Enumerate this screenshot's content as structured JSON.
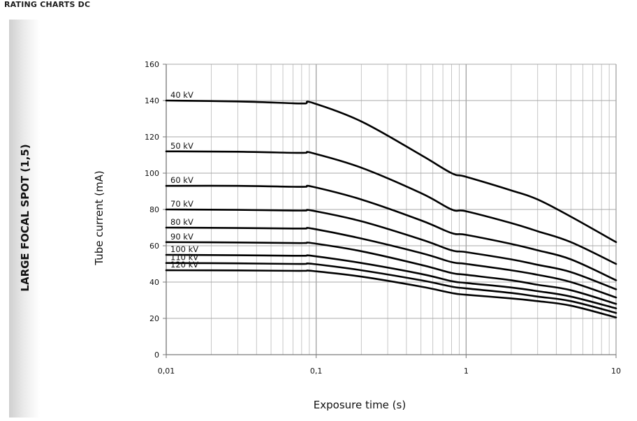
{
  "header": {
    "title": "RATING CHARTS DC"
  },
  "side_label": "LARGE FOCAL SPOT (1,5)",
  "chart_data": {
    "type": "line",
    "xlabel": "Exposure time (s)",
    "ylabel": "Tube current (mA)",
    "x_scale": "log",
    "xlim": [
      0.01,
      10
    ],
    "ylim": [
      0,
      160
    ],
    "x_ticks": [
      0.01,
      0.1,
      1,
      10
    ],
    "x_tick_labels": [
      "0,01",
      "0,1",
      "1",
      "10"
    ],
    "y_ticks": [
      0,
      20,
      40,
      60,
      80,
      100,
      120,
      140,
      160
    ],
    "grid": true,
    "series": [
      {
        "name": "40 kV",
        "x": [
          0.01,
          0.03,
          0.07,
          0.085,
          0.095,
          0.2,
          0.5,
          0.8,
          1,
          2,
          3,
          5,
          10
        ],
        "y": [
          140,
          139.5,
          138.5,
          138.4,
          138.7,
          128.5,
          110,
          100,
          98,
          90.5,
          85.5,
          76,
          62
        ]
      },
      {
        "name": "50 kV",
        "x": [
          0.01,
          0.03,
          0.07,
          0.085,
          0.095,
          0.2,
          0.5,
          0.8,
          1,
          2,
          3,
          5,
          10
        ],
        "y": [
          112,
          111.8,
          111.2,
          111.2,
          111,
          103,
          89,
          80,
          79,
          72.5,
          68,
          62,
          50
        ]
      },
      {
        "name": "60 kV",
        "x": [
          0.01,
          0.03,
          0.07,
          0.085,
          0.095,
          0.2,
          0.5,
          0.8,
          1,
          2,
          3,
          5,
          10
        ],
        "y": [
          93,
          93,
          92.5,
          92.5,
          92.5,
          85.5,
          74,
          67,
          66,
          61,
          57.5,
          52.5,
          41
        ]
      },
      {
        "name": "70 kV",
        "x": [
          0.01,
          0.03,
          0.07,
          0.085,
          0.095,
          0.2,
          0.5,
          0.8,
          1,
          2,
          3,
          5,
          10
        ],
        "y": [
          80,
          79.8,
          79.4,
          79.4,
          79.3,
          73.5,
          63.5,
          57.5,
          56.5,
          52.5,
          49.5,
          45.5,
          36
        ]
      },
      {
        "name": "80 kV",
        "x": [
          0.01,
          0.03,
          0.07,
          0.085,
          0.095,
          0.2,
          0.5,
          0.8,
          1,
          2,
          3,
          5,
          10
        ],
        "y": [
          70,
          69.8,
          69.5,
          69.5,
          69.4,
          64,
          56,
          51,
          50,
          46.5,
          44,
          40,
          31.5
        ]
      },
      {
        "name": "90 kV",
        "x": [
          0.01,
          0.03,
          0.07,
          0.085,
          0.095,
          0.2,
          0.5,
          0.8,
          1,
          2,
          3,
          5,
          10
        ],
        "y": [
          62,
          61.8,
          61.5,
          61.5,
          61.4,
          57,
          49.5,
          45,
          44,
          41,
          38.5,
          35.5,
          28
        ]
      },
      {
        "name": "100 kV",
        "x": [
          0.01,
          0.03,
          0.07,
          0.085,
          0.095,
          0.2,
          0.5,
          0.8,
          1,
          2,
          3,
          5,
          10
        ],
        "y": [
          55,
          54.8,
          54.5,
          54.5,
          54.4,
          50.5,
          44.5,
          40.5,
          39.5,
          37,
          35,
          32,
          25.5
        ]
      },
      {
        "name": "110 kV",
        "x": [
          0.01,
          0.03,
          0.07,
          0.085,
          0.095,
          0.2,
          0.5,
          0.8,
          1,
          2,
          3,
          5,
          10
        ],
        "y": [
          50.5,
          50.3,
          50,
          50,
          50,
          46.5,
          41,
          37.5,
          36.5,
          34,
          32,
          29.5,
          23
        ]
      },
      {
        "name": "120 kV",
        "x": [
          0.01,
          0.03,
          0.07,
          0.085,
          0.095,
          0.2,
          0.5,
          0.8,
          1,
          2,
          3,
          5,
          10
        ],
        "y": [
          46.5,
          46.4,
          46.2,
          46.2,
          46.1,
          43,
          37.5,
          34,
          33,
          31,
          29.5,
          27,
          20.5
        ]
      }
    ]
  }
}
